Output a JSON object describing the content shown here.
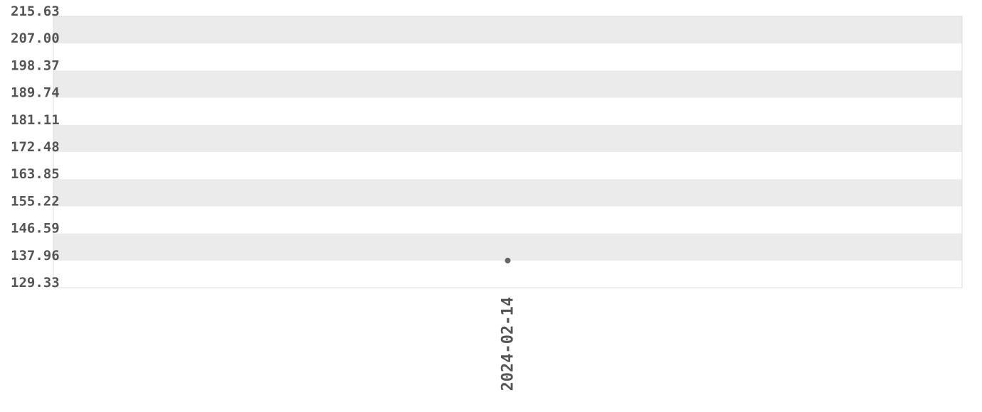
{
  "chart_data": {
    "type": "scatter",
    "title": "",
    "xlabel": "",
    "ylabel": "",
    "ylim": [
      129.33,
      215.63
    ],
    "y_ticks": [
      "215.63",
      "207.00",
      "198.37",
      "189.74",
      "181.11",
      "172.48",
      "163.85",
      "155.22",
      "146.59",
      "137.96",
      "129.33"
    ],
    "categories": [
      "2024-02-14"
    ],
    "values": [
      137.96
    ],
    "grid": "alternating horizontal bands",
    "colors": {
      "band": "#ebebeb",
      "point": "#666666",
      "text": "#555555",
      "border": "#dddddd"
    }
  }
}
